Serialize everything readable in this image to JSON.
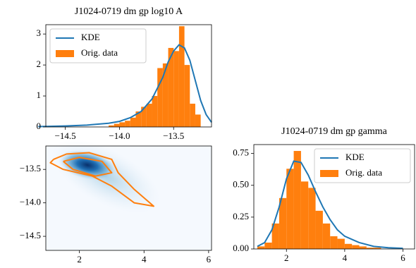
{
  "chart_data": [
    {
      "type": "histogram",
      "title": "J1024-0719 dm gp log10 A",
      "legend": "upper left",
      "xlim": [
        -14.68,
        -13.15
      ],
      "ylim": [
        0,
        3.3
      ],
      "xticks": [
        {
          "value": -14.5,
          "label": "−14.5"
        },
        {
          "value": -14.0,
          "label": "−14.0"
        },
        {
          "value": -13.5,
          "label": "−13.5"
        }
      ],
      "yticks": [
        0,
        1,
        2,
        3
      ],
      "series": [
        {
          "name": "KDE",
          "kind": "line",
          "color": "#1f77b4",
          "x": [
            -14.75,
            -14.5,
            -14.3,
            -14.1,
            -14.0,
            -13.9,
            -13.8,
            -13.7,
            -13.6,
            -13.55,
            -13.5,
            -13.45,
            -13.4,
            -13.35,
            -13.3,
            -13.25,
            -13.2,
            -13.15
          ],
          "values": [
            0.01,
            0.03,
            0.06,
            0.12,
            0.18,
            0.3,
            0.5,
            0.9,
            1.6,
            2.1,
            2.45,
            2.65,
            2.55,
            2.15,
            1.5,
            0.85,
            0.4,
            0.15
          ]
        },
        {
          "name": "Orig. data",
          "kind": "bar",
          "color": "#ff7f0e",
          "bins": [
            -14.1,
            -14.05,
            -14.0,
            -13.95,
            -13.9,
            -13.85,
            -13.8,
            -13.75,
            -13.7,
            -13.65,
            -13.6,
            -13.55,
            -13.5,
            -13.45,
            -13.4,
            -13.35,
            -13.3,
            -13.25
          ],
          "values": [
            0.05,
            0.1,
            0.15,
            0.2,
            0.3,
            0.5,
            0.65,
            0.75,
            1.0,
            1.9,
            2.05,
            2.55,
            2.45,
            3.25,
            2.0,
            0.75,
            0.4
          ]
        }
      ]
    },
    {
      "type": "contour",
      "xlim": [
        0.96,
        6.09
      ],
      "ylim": [
        -14.71,
        -13.15
      ],
      "xticks": [
        2,
        4,
        6
      ],
      "yticks": [
        {
          "value": -13.5,
          "label": "−13.5"
        },
        {
          "value": -14.0,
          "label": "−14.0"
        },
        {
          "value": -14.5,
          "label": "−14.5"
        }
      ],
      "contours": [
        {
          "color": "#ff7f0e",
          "x": [
            1.2,
            1.6,
            2.3,
            3.0,
            3.2,
            3.7,
            4.3,
            3.7,
            3.0,
            2.4,
            1.5,
            1.1,
            1.2
          ],
          "y": [
            -13.35,
            -13.27,
            -13.25,
            -13.35,
            -13.55,
            -13.8,
            -14.05,
            -14.0,
            -13.75,
            -13.6,
            -13.5,
            -13.4,
            -13.35
          ]
        },
        {
          "color": "#ff7f0e",
          "x": [
            1.5,
            2.0,
            2.7,
            3.0,
            2.5,
            1.8,
            1.5
          ],
          "y": [
            -13.38,
            -13.32,
            -13.38,
            -13.55,
            -13.6,
            -13.5,
            -13.38
          ]
        }
      ]
    },
    {
      "type": "histogram",
      "title": "J1024-0719 dm gp gamma",
      "legend": "upper right",
      "xlim": [
        0.88,
        6.4
      ],
      "ylim": [
        0,
        0.82
      ],
      "xticks": [
        2,
        4,
        6
      ],
      "yticks": [
        {
          "value": 0,
          "label": "0.00"
        },
        0.25,
        {
          "value": 0.5,
          "label": "0.50"
        },
        0.75
      ],
      "series": [
        {
          "name": "KDE",
          "kind": "line",
          "color": "#1f77b4",
          "x": [
            1.0,
            1.25,
            1.5,
            1.75,
            2.0,
            2.25,
            2.5,
            2.75,
            3.0,
            3.25,
            3.5,
            3.75,
            4.0,
            4.5,
            5.0,
            5.5,
            6.0
          ],
          "values": [
            0.02,
            0.05,
            0.15,
            0.33,
            0.55,
            0.69,
            0.68,
            0.58,
            0.45,
            0.33,
            0.23,
            0.15,
            0.1,
            0.05,
            0.02,
            0.01,
            0.005
          ]
        },
        {
          "name": "Orig. data",
          "kind": "bar",
          "color": "#ff7f0e",
          "bins": [
            1.0,
            1.25,
            1.5,
            1.75,
            2.0,
            2.25,
            2.5,
            2.75,
            3.0,
            3.25,
            3.5,
            3.75,
            4.0,
            4.25,
            4.5,
            4.75,
            5.0,
            5.25
          ],
          "values": [
            0.02,
            0.05,
            0.2,
            0.4,
            0.63,
            0.77,
            0.53,
            0.48,
            0.3,
            0.2,
            0.1,
            0.08,
            0.04,
            0.03,
            0.02,
            0.01,
            0.01
          ]
        }
      ]
    }
  ]
}
